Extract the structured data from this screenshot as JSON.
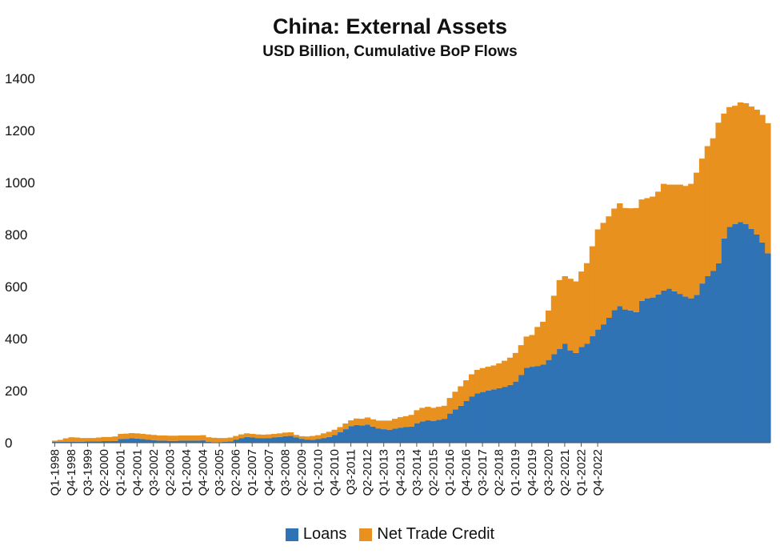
{
  "chart_data": {
    "type": "area",
    "title": "China: External Assets",
    "subtitle": "USD Billion, Cumulative BoP Flows",
    "xlabel": "",
    "ylabel": "",
    "stacked": true,
    "ylim": [
      0,
      1400
    ],
    "yticks": [
      0,
      200,
      400,
      600,
      800,
      1000,
      1200,
      1400
    ],
    "grid": false,
    "legend_position": "bottom",
    "x_tick_labels": [
      "Q1-1998",
      "Q4-1998",
      "Q3-1999",
      "Q2-2000",
      "Q1-2001",
      "Q4-2001",
      "Q3-2002",
      "Q2-2003",
      "Q1-2004",
      "Q4-2004",
      "Q3-2005",
      "Q2-2006",
      "Q1-2007",
      "Q4-2007",
      "Q3-2008",
      "Q2-2009",
      "Q1-2010",
      "Q4-2010",
      "Q3-2011",
      "Q2-2012",
      "Q1-2013",
      "Q4-2013",
      "Q3-2014",
      "Q2-2015",
      "Q1-2016",
      "Q4-2016",
      "Q3-2017",
      "Q2-2018",
      "Q1-2019",
      "Q4-2019",
      "Q3-2020",
      "Q2-2021",
      "Q1-2022",
      "Q4-2022"
    ],
    "x_start": "Q1-1998",
    "series": [
      {
        "name": "Loans",
        "color": "#2f73b5",
        "values": [
          3,
          3,
          3,
          4,
          4,
          4,
          5,
          5,
          5,
          6,
          6,
          7,
          14,
          15,
          17,
          16,
          14,
          12,
          10,
          8,
          8,
          7,
          7,
          8,
          8,
          8,
          8,
          9,
          3,
          2,
          2,
          3,
          5,
          12,
          18,
          22,
          20,
          18,
          17,
          18,
          20,
          22,
          25,
          26,
          20,
          15,
          12,
          11,
          14,
          18,
          22,
          30,
          40,
          52,
          64,
          68,
          66,
          70,
          62,
          55,
          52,
          50,
          54,
          58,
          60,
          62,
          75,
          82,
          86,
          84,
          88,
          92,
          112,
          128,
          142,
          160,
          178,
          190,
          195,
          200,
          205,
          210,
          215,
          222,
          235,
          260,
          288,
          292,
          295,
          300,
          318,
          340,
          360,
          380,
          355,
          345,
          368,
          380,
          410,
          435,
          455,
          480,
          510,
          525,
          512,
          508,
          502,
          545,
          555,
          558,
          570,
          585,
          592,
          582,
          572,
          562,
          555,
          568,
          612,
          640,
          660,
          690,
          785,
          830,
          840,
          848,
          840,
          822,
          800,
          770,
          728
        ]
      },
      {
        "name": "Net Trade Credit",
        "color": "#e8911e",
        "values": [
          5,
          8,
          14,
          17,
          16,
          14,
          13,
          13,
          15,
          16,
          16,
          17,
          20,
          20,
          20,
          20,
          20,
          20,
          20,
          20,
          20,
          20,
          20,
          20,
          20,
          20,
          20,
          20,
          18,
          17,
          16,
          15,
          15,
          14,
          14,
          14,
          14,
          14,
          14,
          14,
          14,
          14,
          14,
          14,
          10,
          10,
          12,
          15,
          15,
          18,
          20,
          20,
          20,
          22,
          22,
          25,
          26,
          27,
          28,
          30,
          33,
          35,
          38,
          40,
          42,
          45,
          50,
          52,
          52,
          50,
          50,
          50,
          60,
          68,
          75,
          80,
          85,
          90,
          92,
          92,
          92,
          95,
          100,
          105,
          110,
          115,
          120,
          122,
          150,
          165,
          190,
          225,
          265,
          260,
          275,
          275,
          290,
          310,
          345,
          385,
          390,
          390,
          390,
          395,
          390,
          393,
          400,
          390,
          385,
          388,
          395,
          410,
          400,
          410,
          420,
          425,
          440,
          470,
          480,
          500,
          510,
          540,
          480,
          460,
          455,
          460,
          465,
          470,
          480,
          490,
          500
        ]
      }
    ]
  }
}
